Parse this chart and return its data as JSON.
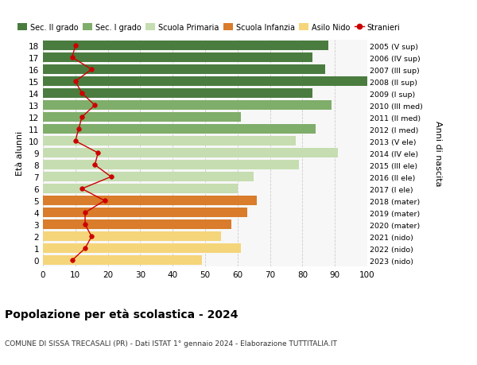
{
  "ages": [
    18,
    17,
    16,
    15,
    14,
    13,
    12,
    11,
    10,
    9,
    8,
    7,
    6,
    5,
    4,
    3,
    2,
    1,
    0
  ],
  "years": [
    "2005 (V sup)",
    "2006 (IV sup)",
    "2007 (III sup)",
    "2008 (II sup)",
    "2009 (I sup)",
    "2010 (III med)",
    "2011 (II med)",
    "2012 (I med)",
    "2013 (V ele)",
    "2014 (IV ele)",
    "2015 (III ele)",
    "2016 (II ele)",
    "2017 (I ele)",
    "2018 (mater)",
    "2019 (mater)",
    "2020 (mater)",
    "2021 (nido)",
    "2022 (nido)",
    "2023 (nido)"
  ],
  "bar_values": [
    88,
    83,
    87,
    100,
    83,
    89,
    61,
    84,
    78,
    91,
    79,
    65,
    60,
    66,
    63,
    58,
    55,
    61,
    49
  ],
  "bar_colors": [
    "#4a7c3f",
    "#4a7c3f",
    "#4a7c3f",
    "#4a7c3f",
    "#4a7c3f",
    "#7fad6a",
    "#7fad6a",
    "#7fad6a",
    "#c5ddb0",
    "#c5ddb0",
    "#c5ddb0",
    "#c5ddb0",
    "#c5ddb0",
    "#d97c2b",
    "#d97c2b",
    "#d97c2b",
    "#f5d57a",
    "#f5d57a",
    "#f5d57a"
  ],
  "stranieri_values": [
    10,
    9,
    15,
    10,
    12,
    16,
    12,
    11,
    10,
    17,
    16,
    21,
    12,
    19,
    13,
    13,
    15,
    13,
    9
  ],
  "legend_labels": [
    "Sec. II grado",
    "Sec. I grado",
    "Scuola Primaria",
    "Scuola Infanzia",
    "Asilo Nido",
    "Stranieri"
  ],
  "legend_colors": [
    "#4a7c3f",
    "#7fad6a",
    "#c5ddb0",
    "#d97c2b",
    "#f5d57a",
    "#cc0000"
  ],
  "title": "Popolazione per età scolastica - 2024",
  "subtitle": "COMUNE DI SISSA TRECASALI (PR) - Dati ISTAT 1° gennaio 2024 - Elaborazione TUTTITALIA.IT",
  "ylabel_left": "Età alunni",
  "ylabel_right": "Anni di nascita",
  "xlim": [
    0,
    100
  ],
  "background_color": "#ffffff",
  "grid_color": "#cccccc"
}
